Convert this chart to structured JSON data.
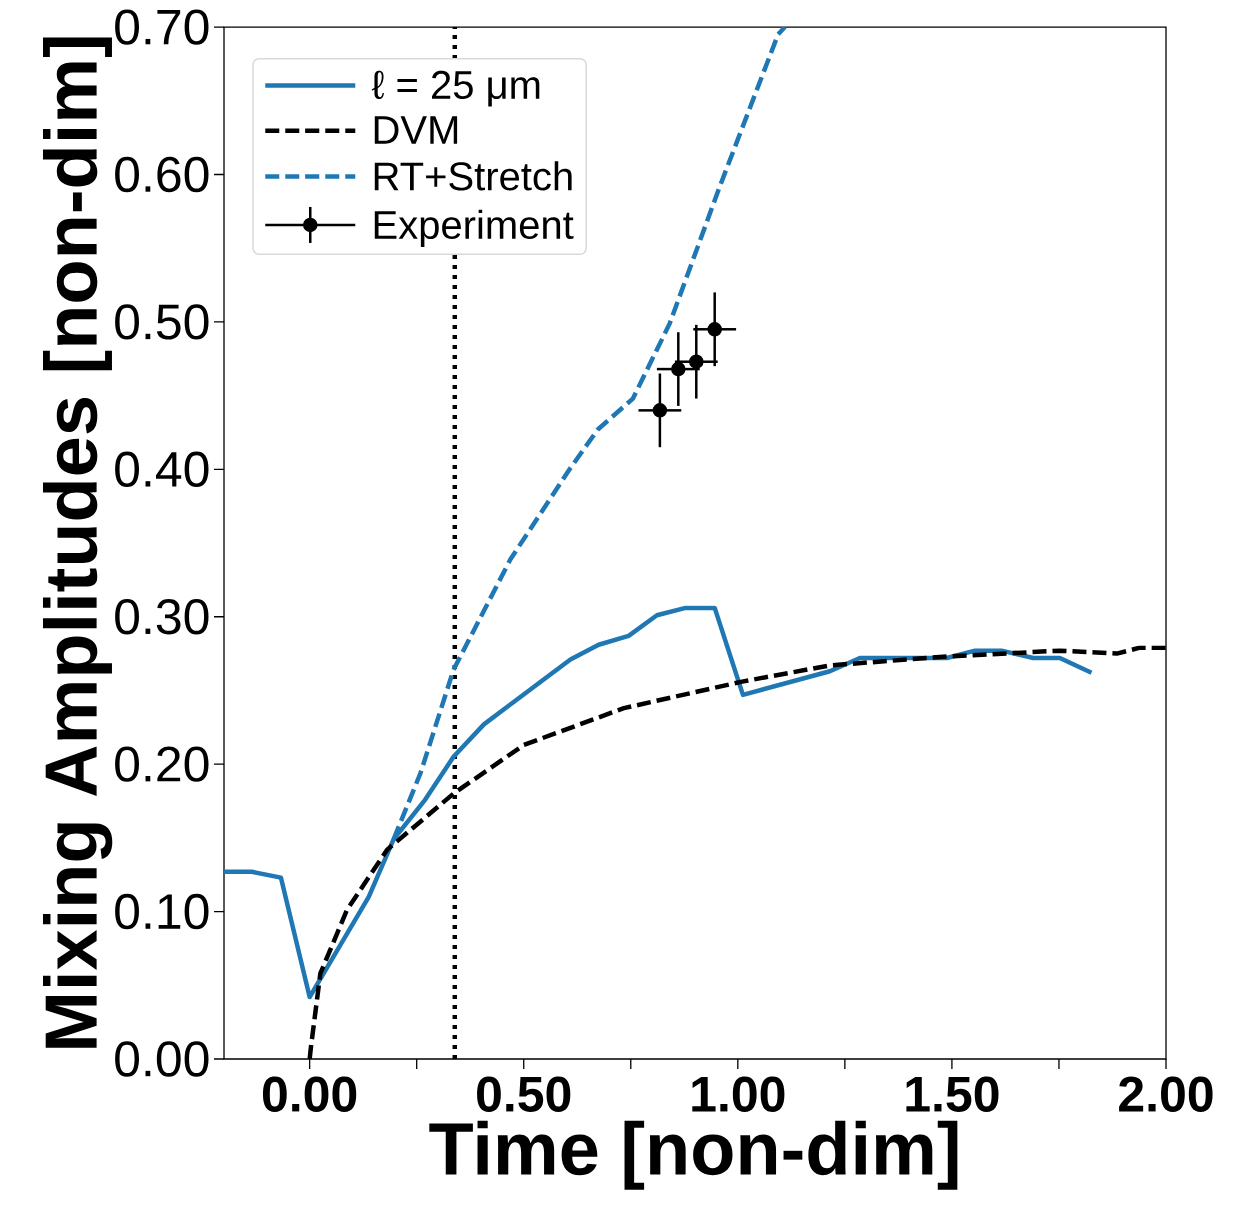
{
  "chart_data": {
    "type": "line",
    "xlabel": "Time [non-dim]",
    "ylabel": "Mixing Amplitudes [non-dim]",
    "xlim": [
      -0.2,
      2.0
    ],
    "ylim": [
      0,
      0.7
    ],
    "xticks": [
      {
        "value": 0,
        "label": "0.00"
      },
      {
        "value": 0.25,
        "label": null
      },
      {
        "value": 0.5,
        "label": "0.50"
      },
      {
        "value": 0.75,
        "label": null
      },
      {
        "value": 1,
        "label": "1.00"
      },
      {
        "value": 1.25,
        "label": null
      },
      {
        "value": 1.5,
        "label": "1.50"
      },
      {
        "value": 1.75,
        "label": null
      },
      {
        "value": 2,
        "label": "2.00"
      }
    ],
    "yticks": [
      {
        "value": 0,
        "label": "0.00"
      },
      {
        "value": 0.1,
        "label": "0.10"
      },
      {
        "value": 0.2,
        "label": "0.20"
      },
      {
        "value": 0.3,
        "label": "0.30"
      },
      {
        "value": 0.4,
        "label": "0.40"
      },
      {
        "value": 0.5,
        "label": "0.50"
      },
      {
        "value": 0.6,
        "label": "0.60"
      },
      {
        "value": 0.7,
        "label": "0.70"
      }
    ],
    "legend": "top left",
    "ref_lines": [
      {
        "axis": "x",
        "value": 0.339,
        "color": "#000000",
        "line_style": "dotted"
      }
    ],
    "series": [
      {
        "name": "ℓ = 25 μm",
        "color": "#1f77b4",
        "line_style": "solid",
        "x": [
          -0.2,
          -0.135,
          -0.067,
          0,
          0.138,
          0.196,
          0.27,
          0.336,
          0.407,
          0.531,
          0.609,
          0.675,
          0.745,
          0.811,
          0.878,
          0.946,
          1.012,
          1.215,
          1.285,
          1.488,
          1.554,
          1.616,
          1.69,
          1.752,
          1.826
        ],
        "values": [
          0.127,
          0.127,
          0.123,
          0.042,
          0.11,
          0.149,
          0.176,
          0.205,
          0.227,
          0.254,
          0.271,
          0.281,
          0.287,
          0.301,
          0.306,
          0.306,
          0.247,
          0.263,
          0.272,
          0.272,
          0.277,
          0.277,
          0.272,
          0.272,
          0.262
        ]
      },
      {
        "name": "DVM",
        "color": "#000000",
        "line_style": "dashed",
        "x": [
          0,
          0.003,
          0.025,
          0.087,
          0.181,
          0.336,
          0.5,
          0.734,
          1.01,
          1.215,
          1.488,
          1.752,
          1.885,
          1.939,
          2.0
        ],
        "values": [
          0,
          0.008,
          0.058,
          0.101,
          0.142,
          0.18,
          0.213,
          0.238,
          0.256,
          0.267,
          0.273,
          0.277,
          0.275,
          0.279,
          0.279
        ]
      },
      {
        "name": "RT+Stretch",
        "color": "#1f77b4",
        "line_style": "dashed",
        "x": [
          0.196,
          0.259,
          0.336,
          0.469,
          0.607,
          0.673,
          0.755,
          0.841,
          0.958,
          1.094,
          1.11
        ],
        "values": [
          0.149,
          0.194,
          0.264,
          0.339,
          0.4,
          0.427,
          0.448,
          0.499,
          0.592,
          0.695,
          0.7
        ]
      },
      {
        "name": "Experiment",
        "type": "scatter",
        "color": "#000000",
        "marker": "circle",
        "x": [
          0.818,
          0.861,
          0.903,
          0.946
        ],
        "values": [
          0.44,
          0.468,
          0.473,
          0.495
        ],
        "errors": [
          0.025,
          0.025,
          0.025,
          0.025
        ],
        "xerrors": [
          0.05,
          0.05,
          0.05,
          0.05
        ]
      }
    ]
  }
}
